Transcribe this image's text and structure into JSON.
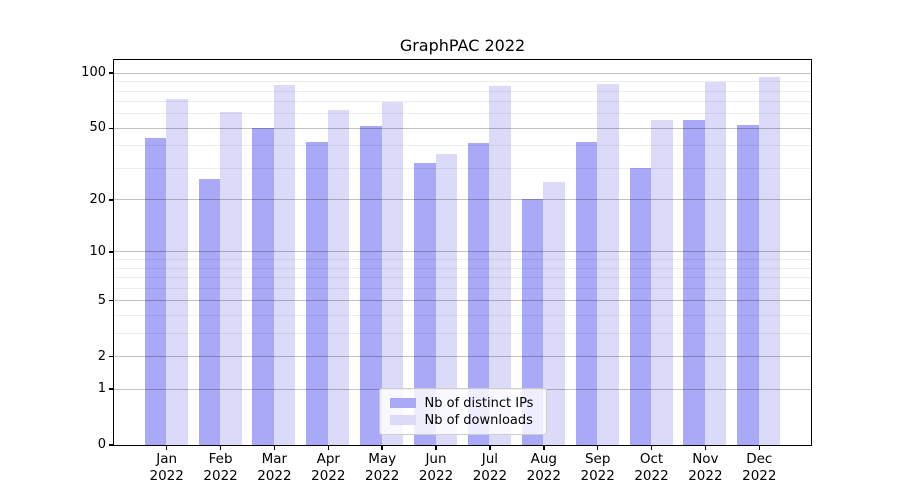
{
  "title": "GraphPAC 2022",
  "legend": {
    "items": [
      {
        "label": "Nb of distinct IPs",
        "color": "#a9a9f7"
      },
      {
        "label": "Nb of downloads",
        "color": "#dbdbf9"
      }
    ]
  },
  "y_axis": {
    "major_ticks": [
      {
        "label": "100",
        "value": 100
      },
      {
        "label": "50",
        "value": 50
      },
      {
        "label": "20",
        "value": 20
      },
      {
        "label": "10",
        "value": 10
      },
      {
        "label": "5",
        "value": 5
      },
      {
        "label": "2",
        "value": 2
      },
      {
        "label": "1",
        "value": 1
      },
      {
        "label": "0",
        "value": 0
      }
    ],
    "minor_tick_values": [
      3,
      4,
      6,
      7,
      8,
      9,
      30,
      40,
      60,
      70,
      80,
      90
    ]
  },
  "x_axis": {
    "ticks": [
      {
        "month": "Jan",
        "year": "2022"
      },
      {
        "month": "Feb",
        "year": "2022"
      },
      {
        "month": "Mar",
        "year": "2022"
      },
      {
        "month": "Apr",
        "year": "2022"
      },
      {
        "month": "May",
        "year": "2022"
      },
      {
        "month": "Jun",
        "year": "2022"
      },
      {
        "month": "Jul",
        "year": "2022"
      },
      {
        "month": "Aug",
        "year": "2022"
      },
      {
        "month": "Sep",
        "year": "2022"
      },
      {
        "month": "Oct",
        "year": "2022"
      },
      {
        "month": "Nov",
        "year": "2022"
      },
      {
        "month": "Dec",
        "year": "2022"
      }
    ]
  },
  "chart_data": {
    "type": "bar",
    "title": "GraphPAC 2022",
    "yscale": "log1p",
    "ylim": [
      0,
      118
    ],
    "grid": true,
    "legend_position": "lower center",
    "categories": [
      "Jan 2022",
      "Feb 2022",
      "Mar 2022",
      "Apr 2022",
      "May 2022",
      "Jun 2022",
      "Jul 2022",
      "Aug 2022",
      "Sep 2022",
      "Oct 2022",
      "Nov 2022",
      "Dec 2022"
    ],
    "series": [
      {
        "name": "Nb of distinct IPs",
        "color": "#a9a9f7",
        "values": [
          44,
          26,
          50,
          42,
          51,
          32,
          41,
          20,
          42,
          30,
          55,
          52
        ]
      },
      {
        "name": "Nb of downloads",
        "color": "#dbdbf9",
        "values": [
          72,
          61,
          86,
          63,
          69,
          36,
          85,
          25,
          87,
          55,
          89,
          95
        ]
      }
    ]
  }
}
